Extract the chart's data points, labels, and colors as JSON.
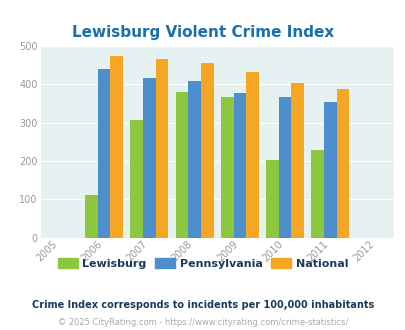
{
  "title": "Lewisburg Violent Crime Index",
  "all_years": [
    2005,
    2006,
    2007,
    2008,
    2009,
    2010,
    2011,
    2012
  ],
  "data_years": [
    2006,
    2007,
    2008,
    2009,
    2010,
    2011
  ],
  "lewisburg": [
    110,
    307,
    381,
    367,
    202,
    228
  ],
  "pennsylvania": [
    441,
    418,
    410,
    379,
    366,
    354
  ],
  "national": [
    474,
    467,
    455,
    432,
    405,
    387
  ],
  "lewisburg_color": "#8dc63f",
  "pennsylvania_color": "#4d8fcc",
  "national_color": "#f5a623",
  "bg_color": "#e6f2f2",
  "title_color": "#1a6faf",
  "ylim": [
    0,
    500
  ],
  "yticks": [
    0,
    100,
    200,
    300,
    400,
    500
  ],
  "subtitle": "Crime Index corresponds to incidents per 100,000 inhabitants",
  "footer": "© 2025 CityRating.com - https://www.cityrating.com/crime-statistics/",
  "subtitle_color": "#1a3a5c",
  "footer_color": "#aaaaaa",
  "legend_labels": [
    "Lewisburg",
    "Pennsylvania",
    "National"
  ],
  "bar_width": 0.28,
  "xlim_left": 2004.6,
  "xlim_right": 2012.4
}
